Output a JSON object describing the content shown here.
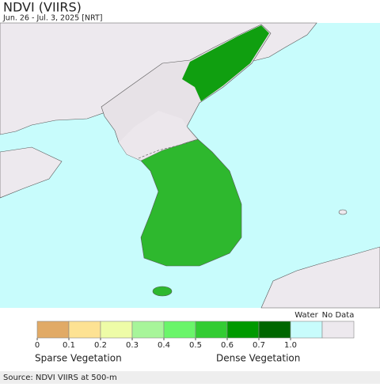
{
  "header": {
    "title": "NDVI (VIIRS)",
    "subtitle": "Jun. 26 - Jul. 3, 2025 [NRT]"
  },
  "legend": {
    "classes": [
      "#e1aa66",
      "#fde293",
      "#eefca7",
      "#a7f59a",
      "#6af56a",
      "#33cc33",
      "#009900",
      "#006600"
    ],
    "water": {
      "label": "Water",
      "color": "#c8fcfc"
    },
    "no_data": {
      "label": "No Data",
      "color": "#ede9ee"
    },
    "ticks": [
      0,
      0.1,
      0.2,
      0.3,
      0.4,
      0.5,
      0.6,
      0.7,
      {
        "value": 1.0,
        "label": "1.0"
      }
    ],
    "low_label": "Sparse Vegetation",
    "high_label": "Dense Vegetation"
  },
  "footer": {
    "source": "Source: NDVI VIIRS at 500-m"
  }
}
